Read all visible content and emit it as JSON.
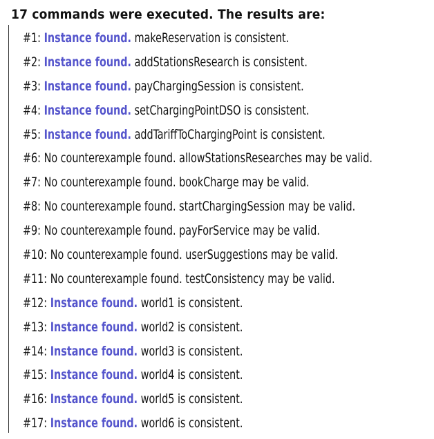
{
  "header": "17 commands were executed. The results are:",
  "results": [
    {
      "num": "#1",
      "link": "Instance found.",
      "text": "makeReservation is consistent."
    },
    {
      "num": "#2",
      "link": "Instance found.",
      "text": "addStationsResearch is consistent."
    },
    {
      "num": "#3",
      "link": "Instance found.",
      "text": "payChargingSession is consistent."
    },
    {
      "num": "#4",
      "link": "Instance found.",
      "text": "setChargingPointDSO is consistent."
    },
    {
      "num": "#5",
      "link": "Instance found.",
      "text": "addTariffToChargingPoint is consistent."
    },
    {
      "num": "#6",
      "link": "",
      "text": "No counterexample found. allowStationsResearches may be valid."
    },
    {
      "num": "#7",
      "link": "",
      "text": "No counterexample found. bookCharge may be valid."
    },
    {
      "num": "#8",
      "link": "",
      "text": "No counterexample found. startChargingSession may be valid."
    },
    {
      "num": "#9",
      "link": "",
      "text": "No counterexample found. payForService may be valid."
    },
    {
      "num": "#10",
      "link": "",
      "text": "No counterexample found. userSuggestions may be valid."
    },
    {
      "num": "#11",
      "link": "",
      "text": "No counterexample found. testConsistency may be valid."
    },
    {
      "num": "#12",
      "link": "Instance found.",
      "text": "world1 is consistent."
    },
    {
      "num": "#13",
      "link": "Instance found.",
      "text": "world2 is consistent."
    },
    {
      "num": "#14",
      "link": "Instance found.",
      "text": "world3 is consistent."
    },
    {
      "num": "#15",
      "link": "Instance found.",
      "text": "world4 is consistent."
    },
    {
      "num": "#16",
      "link": "Instance found.",
      "text": "world5 is consistent."
    },
    {
      "num": "#17",
      "link": "Instance found.",
      "text": "world6 is consistent."
    }
  ],
  "colors": {
    "link": "#5555cc",
    "text": "#111111"
  }
}
